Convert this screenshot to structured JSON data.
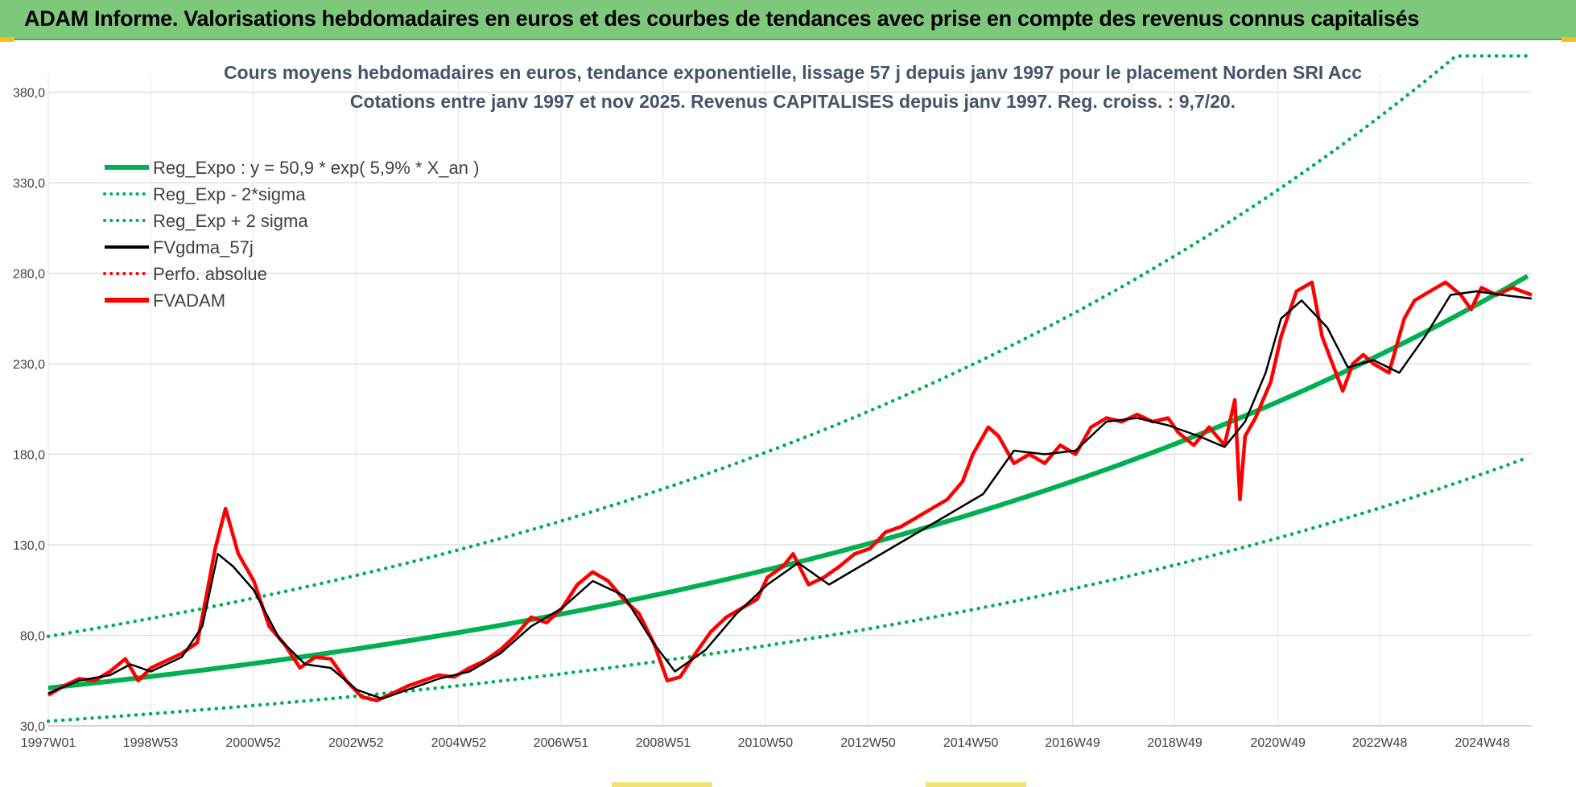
{
  "header": {
    "title": "ADAM Informe. Valorisations hebdomadaires en euros et des courbes de tendances avec prise en compte des revenus connus capitalisés"
  },
  "chart_data": {
    "type": "line",
    "title_line1": "Cours moyens hebdomadaires en euros, tendance exponentielle, lissage 57 j depuis janv 1997  pour le placement Norden SRI Acc",
    "title_line2": "Cotations entre janv 1997 et nov 2025. Revenus CAPITALISES depuis janv 1997. Reg. croiss. : 9,7/20.",
    "x_start": 1997.0,
    "x_end": 2025.88,
    "ylim": [
      30,
      390
    ],
    "y_ticks": [
      30,
      80,
      130,
      180,
      230,
      280,
      330,
      380
    ],
    "y_tick_labels": [
      "30,0",
      "80,0",
      "130,0",
      "180,0",
      "230,0",
      "280,0",
      "330,0",
      "380,0"
    ],
    "x_ticks": [
      1997.0,
      1998.99,
      2000.99,
      2002.99,
      2004.99,
      2006.98,
      2008.97,
      2010.96,
      2012.96,
      2014.96,
      2016.94,
      2018.93,
      2020.94,
      2022.92,
      2024.92
    ],
    "x_tick_labels": [
      "1997W01",
      "1998W53",
      "2000W52",
      "2002W52",
      "2004W52",
      "2006W51",
      "2008W51",
      "2010W50",
      "2012W50",
      "2014W50",
      "2016W49",
      "2018W49",
      "2020W49",
      "2022W48",
      "2024W48"
    ],
    "grid": true,
    "legend_position": "top-left",
    "regression": {
      "a": 50.9,
      "rate": 0.059,
      "sigma_lower_factor": 0.64,
      "sigma_upper_factor": 1.56,
      "upper_cap": 400
    },
    "legend": [
      {
        "label": "Reg_Expo : y = 50,9 * exp( 5,9% *  X_an )",
        "color": "#00b050",
        "style": "solid-thick"
      },
      {
        "label": "Reg_Exp - 2*sigma",
        "color": "#00b050",
        "style": "dotted"
      },
      {
        "label": "Reg_Exp + 2 sigma",
        "color": "#00b050",
        "style": "dotted"
      },
      {
        "label": "FVgdma_57j",
        "color": "#000000",
        "style": "solid"
      },
      {
        "label": "Perfo. absolue",
        "color": "#ff0000",
        "style": "dotted"
      },
      {
        "label": "FVADAM",
        "color": "#ff0000",
        "style": "solid-thick"
      }
    ],
    "series": [
      {
        "name": "FVADAM",
        "color": "#ff0000",
        "x": [
          1997.0,
          1997.3,
          1997.6,
          1997.9,
          1998.2,
          1998.5,
          1998.75,
          1999.0,
          1999.3,
          1999.6,
          1999.9,
          2000.1,
          2000.25,
          2000.45,
          2000.7,
          2001.0,
          2001.3,
          2001.6,
          2001.9,
          2002.2,
          2002.5,
          2002.8,
          2003.1,
          2003.4,
          2003.7,
          2004.0,
          2004.3,
          2004.6,
          2004.9,
          2005.2,
          2005.5,
          2005.8,
          2006.1,
          2006.4,
          2006.7,
          2007.0,
          2007.3,
          2007.6,
          2007.9,
          2008.2,
          2008.5,
          2008.8,
          2009.05,
          2009.3,
          2009.6,
          2009.9,
          2010.2,
          2010.5,
          2010.8,
          2011.0,
          2011.3,
          2011.5,
          2011.8,
          2012.1,
          2012.4,
          2012.7,
          2013.0,
          2013.3,
          2013.6,
          2013.9,
          2014.2,
          2014.5,
          2014.8,
          2015.0,
          2015.3,
          2015.5,
          2015.8,
          2016.1,
          2016.4,
          2016.7,
          2017.0,
          2017.3,
          2017.6,
          2017.9,
          2018.2,
          2018.5,
          2018.8,
          2019.0,
          2019.3,
          2019.6,
          2019.9,
          2020.1,
          2020.2,
          2020.3,
          2020.5,
          2020.8,
          2021.0,
          2021.3,
          2021.6,
          2021.8,
          2022.0,
          2022.2,
          2022.4,
          2022.6,
          2022.8,
          2023.1,
          2023.4,
          2023.6,
          2023.9,
          2024.2,
          2024.5,
          2024.7,
          2024.9,
          2025.2,
          2025.5,
          2025.88
        ],
        "values": [
          47,
          52,
          56,
          55,
          60,
          67,
          55,
          62,
          66,
          70,
          76,
          105,
          128,
          150,
          125,
          110,
          85,
          75,
          62,
          68,
          67,
          55,
          46,
          44,
          48,
          52,
          55,
          58,
          57,
          62,
          66,
          72,
          80,
          90,
          87,
          95,
          108,
          115,
          110,
          100,
          92,
          75,
          55,
          57,
          70,
          82,
          90,
          95,
          100,
          112,
          118,
          125,
          108,
          112,
          118,
          125,
          128,
          137,
          140,
          145,
          150,
          155,
          165,
          180,
          195,
          190,
          175,
          180,
          175,
          185,
          180,
          195,
          200,
          198,
          202,
          198,
          200,
          192,
          185,
          195,
          185,
          210,
          155,
          190,
          200,
          220,
          245,
          270,
          275,
          245,
          230,
          215,
          230,
          235,
          230,
          225,
          255,
          265,
          270,
          275,
          268,
          260,
          272,
          268,
          272,
          268
        ]
      },
      {
        "name": "FVgdma_57j",
        "color": "#000000",
        "x": [
          1997.0,
          1997.6,
          1998.2,
          1998.6,
          1999.0,
          1999.6,
          2000.0,
          2000.3,
          2000.6,
          2001.0,
          2001.5,
          2002.0,
          2002.5,
          2003.0,
          2003.5,
          2004.0,
          2004.6,
          2005.2,
          2005.8,
          2006.4,
          2007.0,
          2007.6,
          2008.2,
          2008.8,
          2009.2,
          2009.8,
          2010.4,
          2011.0,
          2011.6,
          2012.2,
          2012.8,
          2013.4,
          2014.0,
          2014.6,
          2015.2,
          2015.8,
          2016.4,
          2017.0,
          2017.6,
          2018.2,
          2018.8,
          2019.4,
          2019.9,
          2020.3,
          2020.7,
          2021.0,
          2021.4,
          2021.9,
          2022.3,
          2022.8,
          2023.3,
          2023.8,
          2024.3,
          2024.8,
          2025.3,
          2025.88
        ],
        "values": [
          48,
          55,
          58,
          64,
          60,
          68,
          85,
          125,
          118,
          105,
          78,
          64,
          62,
          50,
          45,
          50,
          56,
          60,
          70,
          85,
          95,
          110,
          102,
          75,
          60,
          72,
          92,
          108,
          120,
          108,
          118,
          128,
          138,
          148,
          158,
          182,
          180,
          182,
          198,
          200,
          196,
          190,
          184,
          198,
          225,
          255,
          265,
          250,
          228,
          232,
          225,
          245,
          268,
          270,
          268,
          266
        ]
      }
    ]
  }
}
